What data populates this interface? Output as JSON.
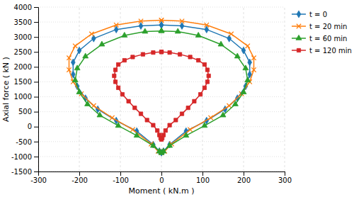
{
  "chart_data": {
    "type": "line",
    "xlabel": "Moment ( kN.m )",
    "ylabel": "Axial force ( kN )",
    "xlim": [
      -300,
      300
    ],
    "ylim": [
      -1500,
      4000
    ],
    "xticks": [
      -300,
      -200,
      -100,
      0,
      100,
      200,
      300
    ],
    "yticks": [
      -1500,
      -1000,
      -500,
      0,
      500,
      1000,
      1500,
      2000,
      2500,
      3000,
      3500,
      4000
    ],
    "grid": true,
    "legend": "right",
    "series": [
      {
        "name": "t = 0",
        "marker": "diamond",
        "x": [
          0,
          50,
          110,
          165,
          200,
          215,
          215,
          205,
          185,
          155,
          110,
          60,
          20,
          5,
          0,
          -5,
          -20,
          -60,
          -110,
          -155,
          -185,
          -205,
          -215,
          -215,
          -200,
          -165,
          -110,
          -50,
          0
        ],
        "values": [
          3400,
          3370,
          3250,
          2950,
          2550,
          2150,
          1750,
          1350,
          950,
          580,
          200,
          -150,
          -600,
          -820,
          -870,
          -820,
          -600,
          -150,
          200,
          580,
          950,
          1350,
          1750,
          2150,
          2550,
          2950,
          3250,
          3370,
          3400
        ]
      },
      {
        "name": "t = 20 min",
        "marker": "x",
        "x": [
          0,
          50,
          110,
          170,
          210,
          225,
          225,
          215,
          195,
          165,
          120,
          70,
          25,
          8,
          0,
          -8,
          -25,
          -70,
          -120,
          -165,
          -195,
          -215,
          -225,
          -225,
          -210,
          -170,
          -110,
          -50,
          0
        ],
        "values": [
          3560,
          3530,
          3400,
          3100,
          2700,
          2300,
          1900,
          1500,
          1100,
          700,
          300,
          -100,
          -580,
          -820,
          -870,
          -820,
          -580,
          -100,
          300,
          700,
          1100,
          1500,
          1900,
          2300,
          2700,
          3100,
          3400,
          3530,
          3560
        ]
      },
      {
        "name": "t = 60 min",
        "marker": "triangle",
        "x": [
          0,
          40,
          90,
          145,
          185,
          205,
          210,
          200,
          180,
          150,
          105,
          60,
          20,
          5,
          0,
          -5,
          -20,
          -60,
          -105,
          -150,
          -180,
          -200,
          -210,
          -205,
          -185,
          -145,
          -90,
          -40,
          0
        ],
        "values": [
          3200,
          3180,
          3050,
          2750,
          2350,
          1950,
          1550,
          1150,
          750,
          380,
          30,
          -300,
          -640,
          -830,
          -880,
          -830,
          -640,
          -300,
          30,
          380,
          750,
          1150,
          1550,
          1950,
          2350,
          2750,
          3050,
          3180,
          3200
        ]
      },
      {
        "name": "t = 120 min",
        "marker": "square",
        "x": [
          0,
          20,
          45,
          70,
          90,
          105,
          112,
          115,
          112,
          105,
          95,
          80,
          65,
          50,
          35,
          20,
          10,
          5,
          2,
          0,
          -2,
          -5,
          -10,
          -20,
          -35,
          -50,
          -65,
          -80,
          -95,
          -105,
          -112,
          -115,
          -112,
          -105,
          -90,
          -70,
          -45,
          -20,
          0
        ],
        "values": [
          2500,
          2480,
          2420,
          2330,
          2220,
          2080,
          1900,
          1700,
          1500,
          1300,
          1080,
          850,
          630,
          430,
          220,
          50,
          -130,
          -280,
          -380,
          -430,
          -380,
          -280,
          -130,
          50,
          220,
          430,
          630,
          850,
          1080,
          1300,
          1500,
          1700,
          1900,
          2080,
          2220,
          2330,
          2420,
          2480,
          2500
        ]
      }
    ]
  }
}
